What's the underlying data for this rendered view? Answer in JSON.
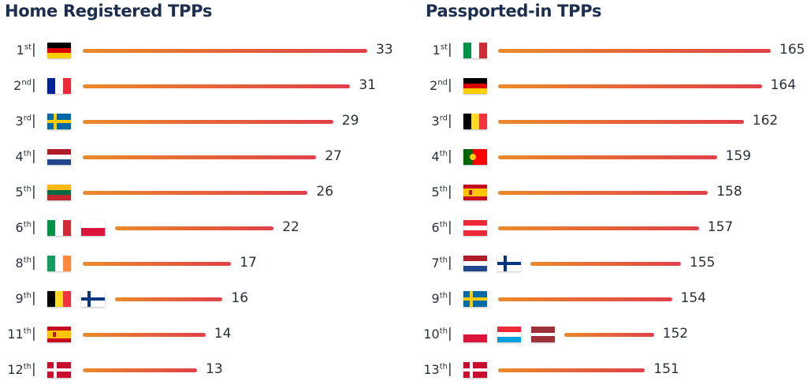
{
  "chart_data": [
    {
      "type": "bar",
      "title": "Home Registered TPPs",
      "orientation": "horizontal",
      "rows": [
        {
          "rank": "1",
          "suffix": "st",
          "countries": [
            "DE"
          ],
          "value": 33
        },
        {
          "rank": "2",
          "suffix": "nd",
          "countries": [
            "FR"
          ],
          "value": 31
        },
        {
          "rank": "3",
          "suffix": "rd",
          "countries": [
            "SE"
          ],
          "value": 29
        },
        {
          "rank": "4",
          "suffix": "th",
          "countries": [
            "NL"
          ],
          "value": 27
        },
        {
          "rank": "5",
          "suffix": "th",
          "countries": [
            "LT"
          ],
          "value": 26
        },
        {
          "rank": "6",
          "suffix": "th",
          "countries": [
            "IT",
            "PL"
          ],
          "value": 22
        },
        {
          "rank": "8",
          "suffix": "th",
          "countries": [
            "IE"
          ],
          "value": 17
        },
        {
          "rank": "9",
          "suffix": "th",
          "countries": [
            "BE",
            "FI"
          ],
          "value": 16
        },
        {
          "rank": "11",
          "suffix": "th",
          "countries": [
            "ES"
          ],
          "value": 14
        },
        {
          "rank": "12",
          "suffix": "th",
          "countries": [
            "DK"
          ],
          "value": 13
        }
      ]
    },
    {
      "type": "bar",
      "title": "Passported-in TPPs",
      "orientation": "horizontal",
      "rows": [
        {
          "rank": "1",
          "suffix": "st",
          "countries": [
            "IT"
          ],
          "value": 165
        },
        {
          "rank": "2",
          "suffix": "nd",
          "countries": [
            "DE"
          ],
          "value": 164
        },
        {
          "rank": "3",
          "suffix": "rd",
          "countries": [
            "BE"
          ],
          "value": 162
        },
        {
          "rank": "4",
          "suffix": "th",
          "countries": [
            "PT"
          ],
          "value": 159
        },
        {
          "rank": "5",
          "suffix": "th",
          "countries": [
            "ES"
          ],
          "value": 158
        },
        {
          "rank": "6",
          "suffix": "th",
          "countries": [
            "AT"
          ],
          "value": 157
        },
        {
          "rank": "7",
          "suffix": "th",
          "countries": [
            "NL",
            "FI"
          ],
          "value": 155
        },
        {
          "rank": "9",
          "suffix": "th",
          "countries": [
            "SE"
          ],
          "value": 154
        },
        {
          "rank": "10",
          "suffix": "th",
          "countries": [
            "PL",
            "LU",
            "LV"
          ],
          "value": 152
        },
        {
          "rank": "13",
          "suffix": "th",
          "countries": [
            "DK"
          ],
          "value": 151
        }
      ]
    }
  ],
  "separator": "|",
  "colors": {
    "bar_start": "#ea8a2a",
    "bar_end": "#e0404a",
    "title": "#1d2f4f"
  }
}
